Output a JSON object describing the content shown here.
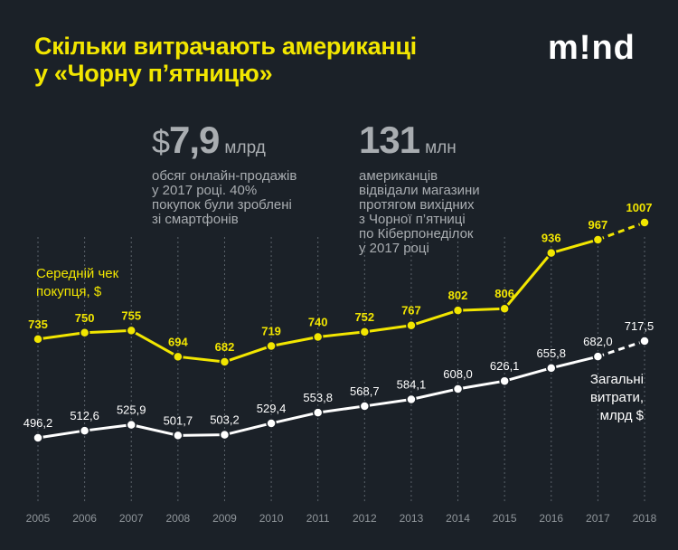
{
  "title": "Скільки витрачають американці\nу «Чорну п’ятницю»",
  "logo": "m!nd",
  "stat1": {
    "currency": "$",
    "value": "7,9",
    "unit": "млрд",
    "desc": "обсяг онлайн-продажів\nу 2017 році. 40%\nпокупок були зроблені\nзі смартфонів"
  },
  "stat2": {
    "value": "131",
    "unit": "млн",
    "desc": "американців\nвідвідали магазини\nпротягом вихідних\nз Чорної п’ятниці\nпо Кіберпонеділок\nу 2017 році"
  },
  "colors": {
    "background": "#1b2128",
    "accent": "#f2e600",
    "white": "#ffffff",
    "gray": "#a9adb1"
  },
  "chart_data": {
    "type": "line",
    "x": [
      "2005",
      "2006",
      "2007",
      "2008",
      "2009",
      "2010",
      "2011",
      "2012",
      "2013",
      "2014",
      "2015",
      "2016",
      "2017",
      "2018"
    ],
    "series": [
      {
        "name": "Середній чек\nпокупця, $",
        "color": "#f2e600",
        "values": [
          735,
          750,
          755,
          694,
          682,
          719,
          740,
          752,
          767,
          802,
          806,
          936,
          967,
          1007
        ],
        "labels": [
          "735",
          "750",
          "755",
          "694",
          "682",
          "719",
          "740",
          "752",
          "767",
          "802",
          "806",
          "936",
          "967",
          "1007"
        ],
        "forecast_from_index": 12
      },
      {
        "name": "Загальні\nвитрати,\nмлрд $",
        "color": "#ffffff",
        "values": [
          496.2,
          512.6,
          525.9,
          501.7,
          503.2,
          529.4,
          553.8,
          568.7,
          584.1,
          608.0,
          626.1,
          655.8,
          682.0,
          717.5
        ],
        "labels": [
          "496,2",
          "512,6",
          "525,9",
          "501,7",
          "503,2",
          "529,4",
          "553,8",
          "568,7",
          "584,1",
          "608,0",
          "626,1",
          "655,8",
          "682,0",
          "717,5"
        ],
        "forecast_from_index": 12
      }
    ],
    "grid": "vertical dashed"
  }
}
